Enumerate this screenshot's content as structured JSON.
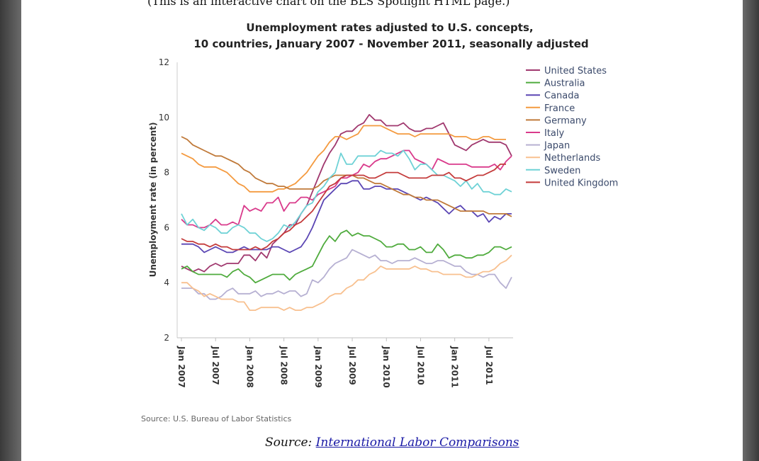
{
  "page": {
    "top_caption": "(This is an interactive chart on the BLS Spotlight HTML page.)",
    "source_prefix": "Source:",
    "source_link": "International Labor Comparisons"
  },
  "chart_data": {
    "type": "line",
    "title_line1": "Unemployment rates adjusted to U.S. concepts,",
    "title_line2": "10 countries, January 2007 - November 2011, seasonally adjusted",
    "xlabel": "",
    "ylabel": "Unemployment rate (in percent)",
    "ylim": [
      2,
      12
    ],
    "yticks": [
      2,
      4,
      6,
      8,
      10,
      12
    ],
    "x_start": "Jan 2007",
    "x_end": "Nov 2011",
    "xticks": [
      "Jan 2007",
      "Jul 2007",
      "Jan 2008",
      "Jul 2008",
      "Jan 2009",
      "Jul 2009",
      "Jan 2010",
      "Jul 2010",
      "Jan 2011",
      "Jul 2011"
    ],
    "grid": "vertical only, none",
    "legend_position": "right",
    "credit": "Source: U.S. Bureau of Labor Statistics",
    "series": [
      {
        "name": "United States",
        "color": "#a0386e",
        "values": [
          4.6,
          4.5,
          4.4,
          4.5,
          4.4,
          4.6,
          4.7,
          4.6,
          4.7,
          4.7,
          4.7,
          5.0,
          5.0,
          4.8,
          5.1,
          4.9,
          5.4,
          5.6,
          5.8,
          6.1,
          6.1,
          6.5,
          6.8,
          7.3,
          7.8,
          8.3,
          8.7,
          9.0,
          9.4,
          9.5,
          9.5,
          9.7,
          9.8,
          10.1,
          9.9,
          9.9,
          9.7,
          9.7,
          9.7,
          9.8,
          9.6,
          9.5,
          9.5,
          9.6,
          9.6,
          9.7,
          9.8,
          9.4,
          9.0,
          8.9,
          8.8,
          9.0,
          9.1,
          9.2,
          9.1,
          9.1,
          9.1,
          9.0,
          8.6
        ]
      },
      {
        "name": "Australia",
        "color": "#4fab3d",
        "values": [
          4.5,
          4.6,
          4.4,
          4.3,
          4.3,
          4.3,
          4.3,
          4.3,
          4.2,
          4.4,
          4.5,
          4.3,
          4.2,
          4.0,
          4.1,
          4.2,
          4.3,
          4.3,
          4.3,
          4.1,
          4.3,
          4.4,
          4.5,
          4.6,
          5.0,
          5.4,
          5.7,
          5.5,
          5.8,
          5.9,
          5.7,
          5.8,
          5.7,
          5.7,
          5.6,
          5.5,
          5.3,
          5.3,
          5.4,
          5.4,
          5.2,
          5.2,
          5.3,
          5.1,
          5.1,
          5.4,
          5.2,
          4.9,
          5.0,
          5.0,
          4.9,
          4.9,
          5.0,
          5.0,
          5.1,
          5.3,
          5.3,
          5.2,
          5.3
        ]
      },
      {
        "name": "Canada",
        "color": "#5b46b4",
        "values": [
          5.4,
          5.4,
          5.4,
          5.3,
          5.1,
          5.2,
          5.3,
          5.2,
          5.1,
          5.1,
          5.2,
          5.3,
          5.2,
          5.2,
          5.2,
          5.2,
          5.3,
          5.3,
          5.2,
          5.1,
          5.2,
          5.3,
          5.6,
          6.0,
          6.5,
          7.0,
          7.2,
          7.4,
          7.6,
          7.6,
          7.7,
          7.7,
          7.4,
          7.4,
          7.5,
          7.5,
          7.4,
          7.4,
          7.4,
          7.3,
          7.2,
          7.1,
          7.0,
          7.1,
          7.0,
          6.9,
          6.7,
          6.5,
          6.7,
          6.8,
          6.6,
          6.6,
          6.4,
          6.5,
          6.2,
          6.4,
          6.3,
          6.5,
          6.5
        ]
      },
      {
        "name": "France",
        "color": "#f49a3f",
        "values": [
          8.7,
          8.6,
          8.5,
          8.3,
          8.2,
          8.2,
          8.2,
          8.1,
          8.0,
          7.8,
          7.6,
          7.5,
          7.3,
          7.3,
          7.3,
          7.3,
          7.3,
          7.4,
          7.4,
          7.5,
          7.6,
          7.8,
          8.0,
          8.3,
          8.6,
          8.8,
          9.1,
          9.3,
          9.3,
          9.2,
          9.3,
          9.4,
          9.7,
          9.7,
          9.7,
          9.7,
          9.6,
          9.5,
          9.4,
          9.4,
          9.4,
          9.3,
          9.4,
          9.4,
          9.4,
          9.4,
          9.4,
          9.4,
          9.3,
          9.3,
          9.3,
          9.2,
          9.2,
          9.3,
          9.3,
          9.2,
          9.2,
          9.2,
          null
        ]
      },
      {
        "name": "Germany",
        "color": "#c07a3a",
        "values": [
          9.3,
          9.2,
          9.0,
          8.9,
          8.8,
          8.7,
          8.6,
          8.6,
          8.5,
          8.4,
          8.3,
          8.1,
          8.0,
          7.8,
          7.7,
          7.6,
          7.6,
          7.5,
          7.5,
          7.4,
          7.4,
          7.4,
          7.4,
          7.4,
          7.5,
          7.7,
          7.8,
          7.9,
          7.9,
          7.9,
          7.9,
          7.8,
          7.8,
          7.7,
          7.6,
          7.6,
          7.5,
          7.4,
          7.3,
          7.2,
          7.2,
          7.1,
          7.1,
          7.0,
          7.0,
          7.0,
          6.9,
          6.8,
          6.7,
          6.6,
          6.6,
          6.6,
          6.6,
          6.6,
          6.5,
          6.5,
          6.5,
          6.5,
          6.4
        ]
      },
      {
        "name": "Italy",
        "color": "#d93a8b",
        "values": [
          6.3,
          6.1,
          6.1,
          6.0,
          6.0,
          6.1,
          6.3,
          6.1,
          6.1,
          6.2,
          6.1,
          6.8,
          6.6,
          6.7,
          6.6,
          6.9,
          6.9,
          7.1,
          6.6,
          6.9,
          6.9,
          7.1,
          7.1,
          7.0,
          7.2,
          7.3,
          7.4,
          7.5,
          7.8,
          7.8,
          7.9,
          8.0,
          8.3,
          8.2,
          8.4,
          8.5,
          8.5,
          8.6,
          8.7,
          8.8,
          8.8,
          8.5,
          8.4,
          8.3,
          8.1,
          8.5,
          8.4,
          8.3,
          8.3,
          8.3,
          8.3,
          8.2,
          8.2,
          8.2,
          8.2,
          8.3,
          8.1,
          8.4,
          8.6
        ]
      },
      {
        "name": "Japan",
        "color": "#b6b0d2",
        "values": [
          3.8,
          3.8,
          3.8,
          3.6,
          3.6,
          3.4,
          3.4,
          3.5,
          3.7,
          3.8,
          3.6,
          3.6,
          3.6,
          3.7,
          3.5,
          3.6,
          3.6,
          3.7,
          3.6,
          3.7,
          3.7,
          3.5,
          3.6,
          4.1,
          4.0,
          4.2,
          4.5,
          4.7,
          4.8,
          4.9,
          5.2,
          5.1,
          5.0,
          4.9,
          5.0,
          4.8,
          4.8,
          4.7,
          4.8,
          4.8,
          4.8,
          4.9,
          4.8,
          4.7,
          4.7,
          4.8,
          4.8,
          4.7,
          4.6,
          4.6,
          4.4,
          4.3,
          4.3,
          4.2,
          4.3,
          4.3,
          4.0,
          3.8,
          4.2
        ]
      },
      {
        "name": "Netherlands",
        "color": "#f8c08f",
        "values": [
          4.0,
          4.0,
          3.8,
          3.7,
          3.5,
          3.6,
          3.5,
          3.4,
          3.4,
          3.4,
          3.3,
          3.3,
          3.0,
          3.0,
          3.1,
          3.1,
          3.1,
          3.1,
          3.0,
          3.1,
          3.0,
          3.0,
          3.1,
          3.1,
          3.2,
          3.3,
          3.5,
          3.6,
          3.6,
          3.8,
          3.9,
          4.1,
          4.1,
          4.3,
          4.4,
          4.6,
          4.5,
          4.5,
          4.5,
          4.5,
          4.5,
          4.6,
          4.5,
          4.5,
          4.4,
          4.4,
          4.3,
          4.3,
          4.3,
          4.3,
          4.2,
          4.2,
          4.3,
          4.4,
          4.4,
          4.5,
          4.7,
          4.8,
          5.0
        ]
      },
      {
        "name": "Sweden",
        "color": "#6fd2d6",
        "values": [
          6.5,
          6.1,
          6.3,
          6.0,
          5.9,
          6.1,
          6.0,
          5.8,
          5.8,
          6.0,
          6.1,
          6.0,
          5.8,
          5.8,
          5.6,
          5.5,
          5.6,
          5.8,
          6.1,
          6.0,
          6.2,
          6.5,
          6.8,
          6.9,
          7.3,
          7.5,
          7.8,
          8.0,
          8.7,
          8.3,
          8.3,
          8.6,
          8.6,
          8.6,
          8.6,
          8.8,
          8.7,
          8.7,
          8.6,
          8.8,
          8.5,
          8.1,
          8.3,
          8.3,
          8.1,
          7.9,
          7.9,
          7.8,
          7.7,
          7.5,
          7.7,
          7.4,
          7.6,
          7.3,
          7.3,
          7.2,
          7.2,
          7.4,
          7.3
        ]
      },
      {
        "name": "United Kingdom",
        "color": "#c43b3b",
        "values": [
          5.6,
          5.5,
          5.5,
          5.4,
          5.4,
          5.3,
          5.4,
          5.3,
          5.3,
          5.2,
          5.2,
          5.2,
          5.2,
          5.3,
          5.2,
          5.3,
          5.5,
          5.6,
          5.8,
          5.9,
          6.1,
          6.2,
          6.4,
          6.6,
          6.9,
          7.2,
          7.5,
          7.6,
          7.8,
          7.9,
          7.9,
          7.9,
          7.9,
          7.8,
          7.8,
          7.9,
          8.0,
          8.0,
          8.0,
          7.9,
          7.8,
          7.8,
          7.8,
          7.8,
          7.9,
          7.9,
          7.9,
          8.0,
          7.8,
          7.8,
          7.7,
          7.8,
          7.9,
          7.9,
          8.0,
          8.1,
          8.3,
          8.3,
          null
        ]
      }
    ]
  }
}
